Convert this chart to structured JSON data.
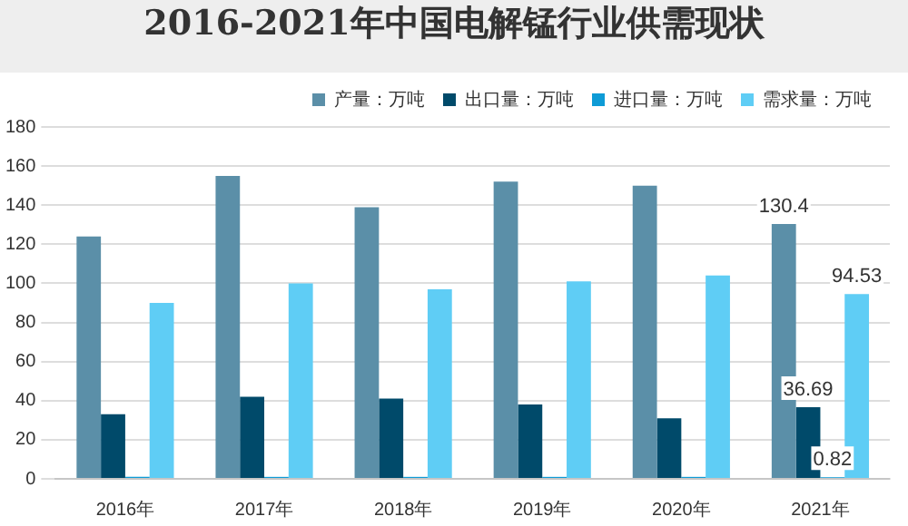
{
  "chart_data": {
    "type": "bar",
    "title": "2016-2021年中国电解锰行业供需现状",
    "categories": [
      "2016年",
      "2017年",
      "2018年",
      "2019年",
      "2020年",
      "2021年"
    ],
    "series": [
      {
        "name": "产量：万吨",
        "color": "#5b8fa8",
        "values": [
          124,
          155,
          139,
          152,
          150,
          130.4
        ],
        "value_labels": [
          null,
          null,
          null,
          null,
          null,
          "130.4"
        ]
      },
      {
        "name": "出口量：万吨",
        "color": "#004a6a",
        "values": [
          33,
          42,
          41,
          38,
          31,
          36.69
        ],
        "value_labels": [
          null,
          null,
          null,
          null,
          null,
          "36.69"
        ]
      },
      {
        "name": "进口量：万吨",
        "color": "#0e9bd6",
        "values": [
          1,
          1,
          1,
          1,
          1,
          0.82
        ],
        "value_labels": [
          null,
          null,
          null,
          null,
          null,
          "0.82"
        ]
      },
      {
        "name": "需求量：万吨",
        "color": "#5fcdf5",
        "values": [
          90,
          100,
          97,
          101,
          104,
          94.53
        ],
        "value_labels": [
          null,
          null,
          null,
          null,
          null,
          "94.53"
        ]
      }
    ],
    "ylim": [
      0,
      180
    ],
    "yticks": [
      0,
      20,
      40,
      60,
      80,
      100,
      120,
      140,
      160,
      180
    ],
    "grid": "y",
    "legend": "top right"
  }
}
